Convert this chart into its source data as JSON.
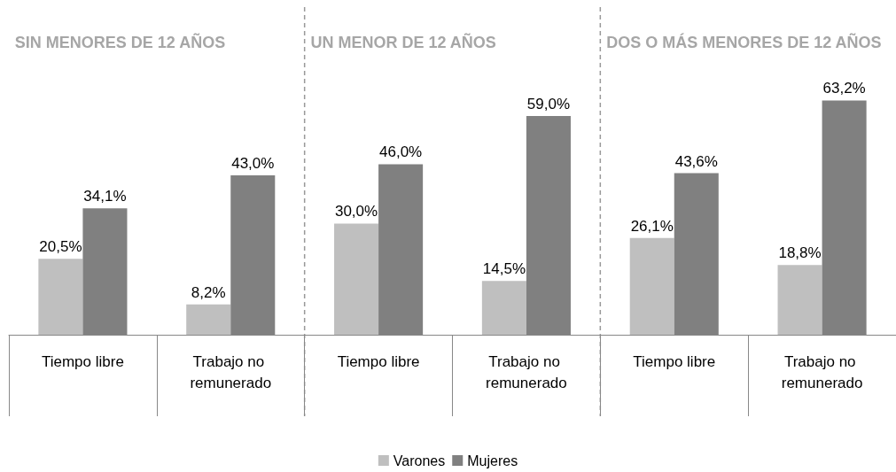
{
  "chart_data": {
    "type": "bar",
    "categories": [
      "Tiempo libre",
      "Trabajo no remunerado",
      "Tiempo libre",
      "Trabajo no remunerado",
      "Tiempo libre",
      "Trabajo no remunerado"
    ],
    "series": [
      {
        "name": "Varones",
        "color": "#bfbfbf",
        "values": [
          20.5,
          8.2,
          30.0,
          14.5,
          26.1,
          18.8
        ],
        "value_labels": [
          "20,5%",
          "8,2%",
          "30,0%",
          "14,5%",
          "26,1%",
          "18,8%"
        ]
      },
      {
        "name": "Mujeres",
        "color": "#808080",
        "values": [
          34.1,
          43.0,
          46.0,
          59.0,
          43.6,
          63.2
        ],
        "value_labels": [
          "34,1%",
          "43,0%",
          "46,0%",
          "59,0%",
          "43,6%",
          "63,2%"
        ]
      }
    ],
    "annotations": [
      "SIN MENORES DE 12 AÑOS",
      "UN MENOR DE 12 AÑOS",
      "DOS O MÁS MENORES DE 12 AÑOS"
    ],
    "legend": "bottom",
    "grid": false
  }
}
